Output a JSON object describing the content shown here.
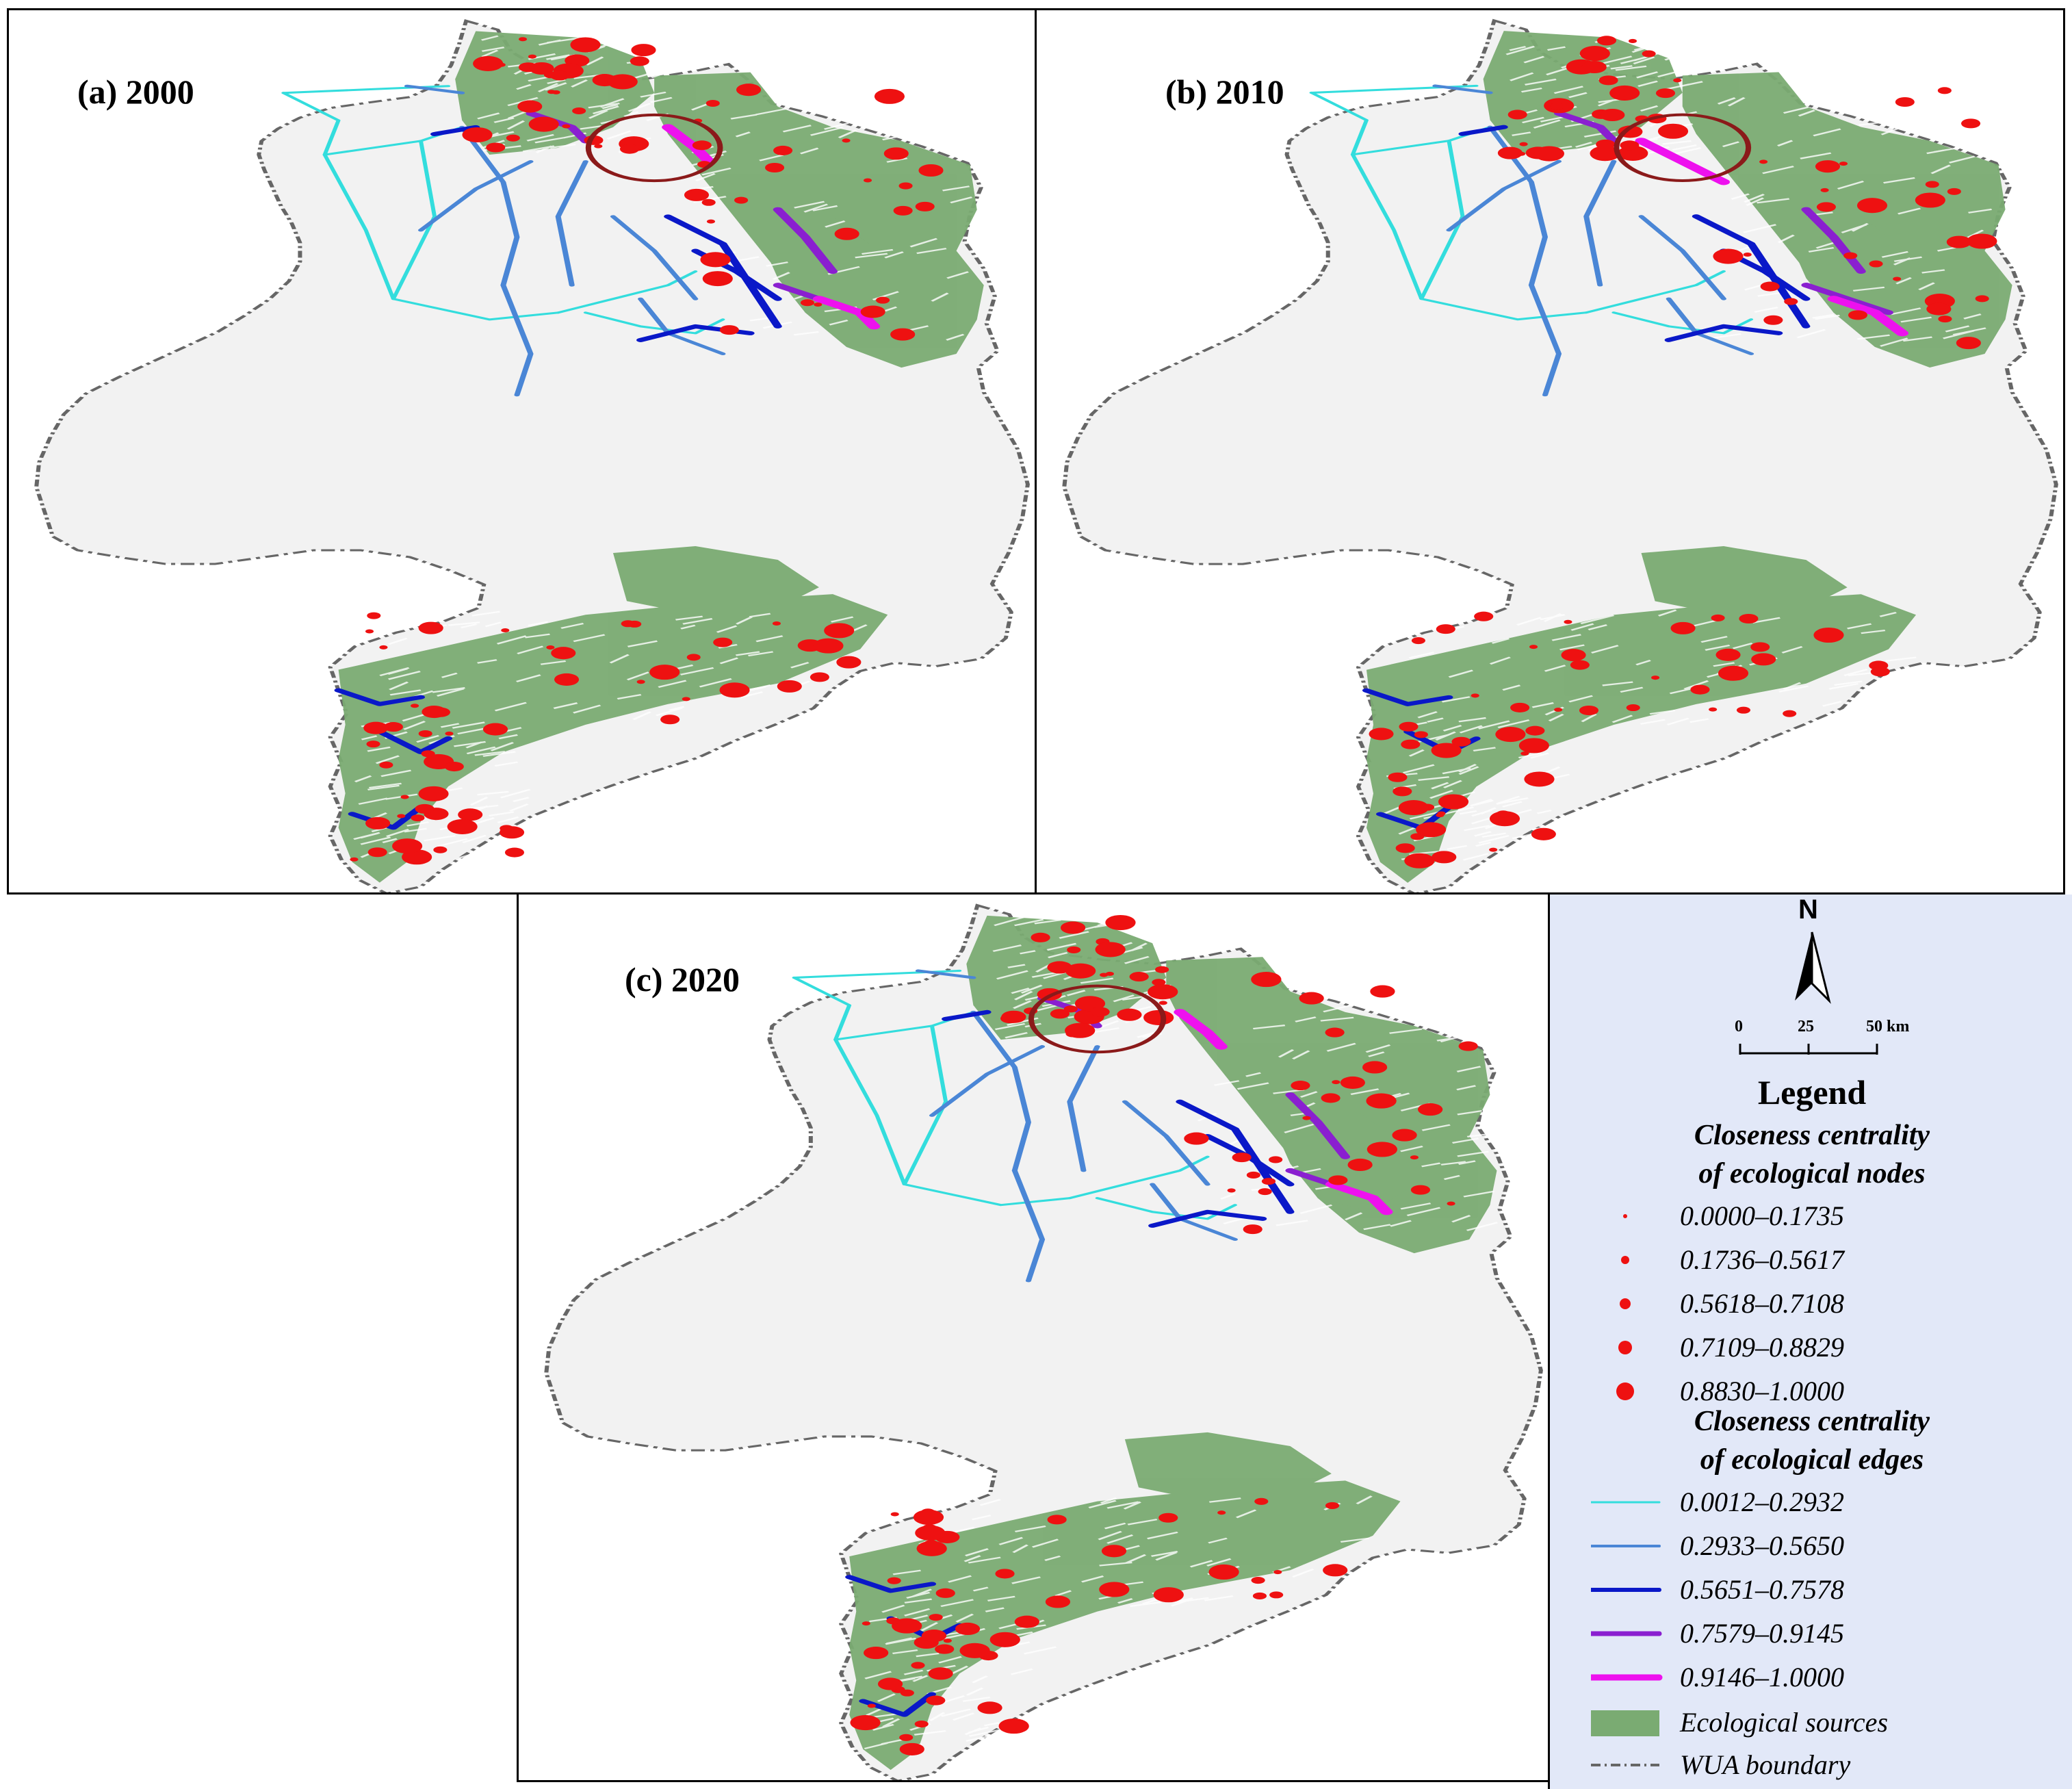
{
  "panels": [
    {
      "label": "(a) 2000"
    },
    {
      "label": "(b) 2010"
    },
    {
      "label": "(c) 2020"
    }
  ],
  "legend": {
    "north": "N",
    "scale": {
      "t0": "0",
      "t1": "25",
      "t2": "50 km"
    },
    "title": "Legend",
    "nodes_title_1": "Closeness centrality",
    "nodes_title_2": "of ecological nodes",
    "nodes": [
      "0.0000–0.1735",
      "0.1736–0.5617",
      "0.5618–0.7108",
      "0.7109–0.8829",
      "0.8830–1.0000"
    ],
    "edges_title_1": "Closeness centrality",
    "edges_title_2": "of ecological edges",
    "edges": [
      "0.0012–0.2932",
      "0.2933–0.5650",
      "0.5651–0.7578",
      "0.7579–0.9145",
      "0.9146–1.0000"
    ],
    "sources": "Ecological sources",
    "boundary": "WUA boundary"
  },
  "colors": {
    "region_fill": "#f2f2f2",
    "boundary": "#666666",
    "source_green": "#7aab72",
    "node_red": "#ee1111",
    "circle_highlight": "#8b1a1a",
    "edge_class_1": "#33dddd",
    "edge_class_2": "#4a86d6",
    "edge_class_3": "#0a18c8",
    "edge_class_4": "#8a1fd0",
    "edge_class_5": "#ee11ee",
    "legend_bg": "#e2e8f8"
  }
}
